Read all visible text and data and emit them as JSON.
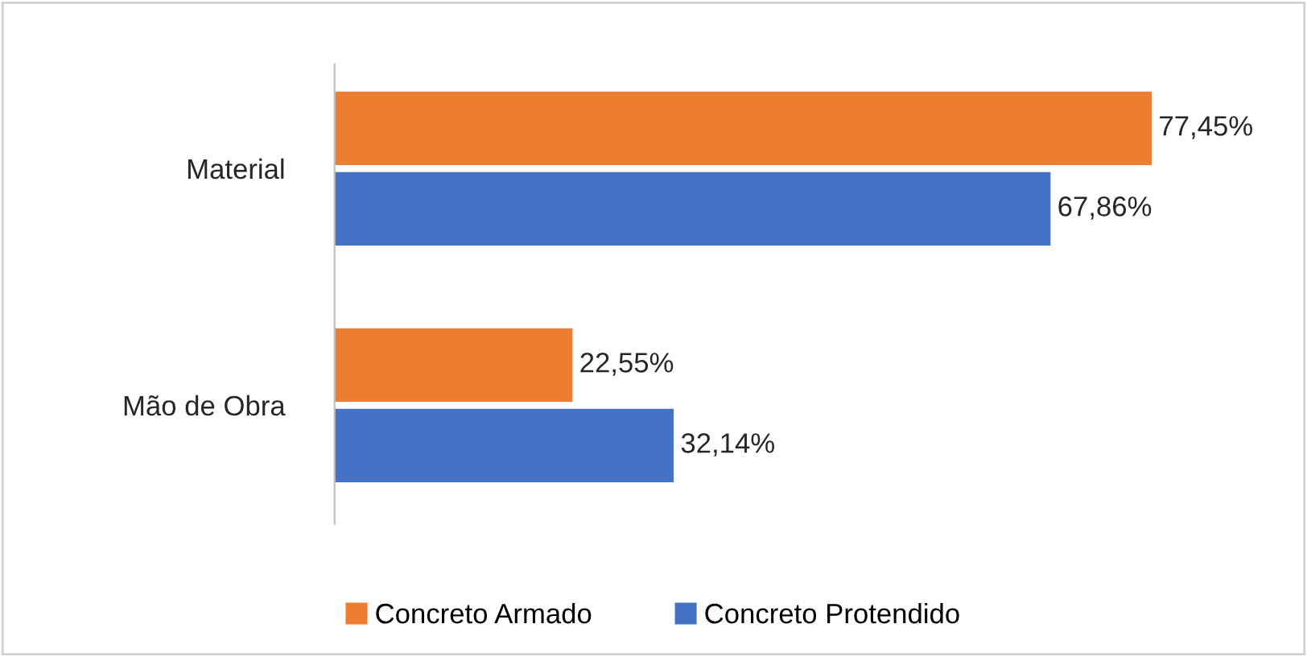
{
  "chart_data": {
    "type": "bar",
    "orientation": "horizontal",
    "categories": [
      "Material",
      "Mão de Obra"
    ],
    "series": [
      {
        "name": "Concreto Armado",
        "color": "#ed7d31",
        "values": [
          77.45,
          22.55
        ],
        "value_labels": [
          "77,45%",
          "22,55%"
        ]
      },
      {
        "name": "Concreto Protendido",
        "color": "#4472c4",
        "values": [
          67.86,
          32.14
        ],
        "value_labels": [
          "67,86%",
          "32,14%"
        ]
      }
    ],
    "legend": "bottom",
    "grid": false
  }
}
